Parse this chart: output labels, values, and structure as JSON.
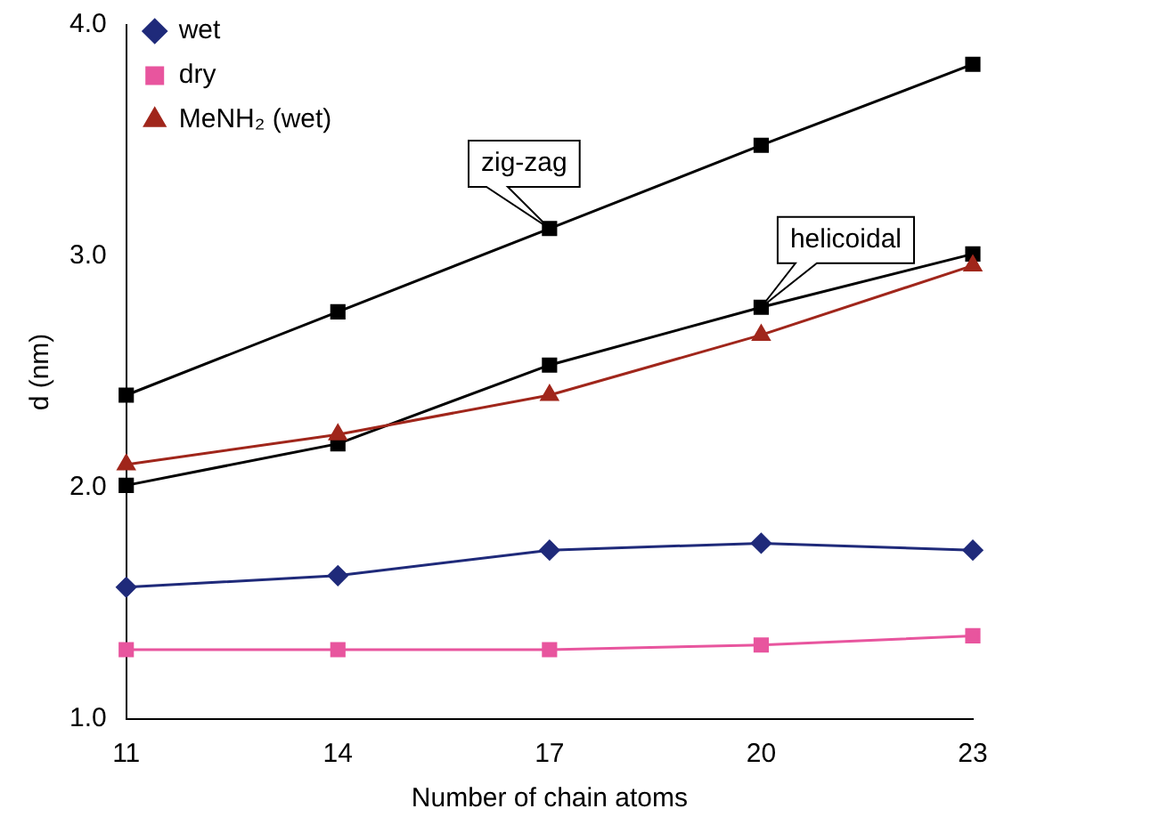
{
  "chart_data": {
    "type": "line",
    "xlabel": "Number of chain atoms",
    "ylabel": "d (nm)",
    "categories": [
      "11",
      "14",
      "17",
      "20",
      "23"
    ],
    "series": [
      {
        "name": "wet",
        "color": "#1f2a7a",
        "marker": "diamond",
        "values": [
          1.57,
          1.62,
          1.73,
          1.76,
          1.73
        ]
      },
      {
        "name": "dry",
        "color": "#e8559e",
        "marker": "square",
        "values": [
          1.3,
          1.3,
          1.3,
          1.32,
          1.36
        ]
      },
      {
        "name": "MeNH₂ (wet)",
        "color": "#a0261b",
        "marker": "triangle",
        "values": [
          2.1,
          2.23,
          2.4,
          2.66,
          2.96
        ]
      },
      {
        "color": "#000000",
        "marker": "square",
        "values": [
          2.4,
          2.76,
          3.12,
          3.48,
          3.83
        ]
      },
      {
        "color": "#000000",
        "marker": "square",
        "values": [
          2.01,
          2.19,
          2.53,
          2.78,
          3.01
        ]
      }
    ],
    "annotations": [
      {
        "text": "zig-zag",
        "x": "17",
        "y": 3.12
      },
      {
        "text": "helicoidal",
        "x": "20",
        "y": 2.78
      }
    ],
    "ylim": [
      1,
      4
    ],
    "yticks": [
      {
        "value": 1,
        "label": "1.0"
      },
      {
        "value": 2,
        "label": "2.0"
      },
      {
        "value": 3,
        "label": "3.0"
      },
      {
        "value": 4,
        "label": "4.0"
      }
    ],
    "grid": false,
    "legend": "top left",
    "line_style": "solid"
  }
}
